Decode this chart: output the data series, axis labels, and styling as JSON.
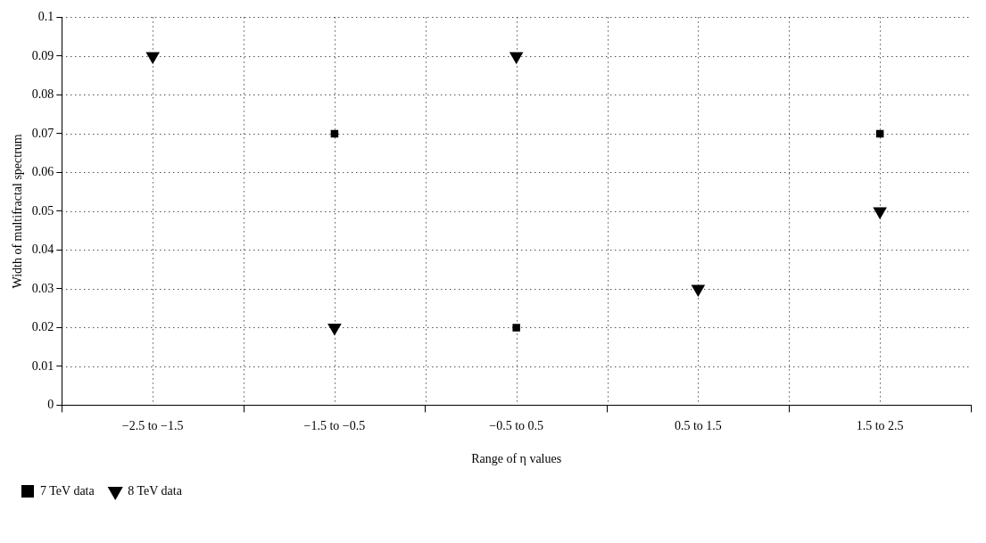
{
  "chart_data": {
    "type": "scatter",
    "xlabel": "Range of η values",
    "ylabel": "Width of multifractal spectrum",
    "categories": [
      "−2.5 to −1.5",
      "−1.5 to −0.5",
      "−0.5 to 0.5",
      "0.5 to 1.5",
      "1.5 to 2.5"
    ],
    "series": [
      {
        "name": "7 TeV data",
        "color": "#000000",
        "marker": "square",
        "values": [
          null,
          0.07,
          0.02,
          null,
          0.07
        ]
      },
      {
        "name": "8 TeV data",
        "color": "#000000",
        "marker": "triangle",
        "values": [
          0.09,
          0.02,
          0.09,
          0.03,
          0.05
        ]
      }
    ],
    "ylim": [
      0,
      0.1
    ],
    "yticks": [
      0,
      0.01,
      0.02,
      0.03,
      0.04,
      0.05,
      0.06,
      0.07,
      0.08,
      0.09,
      0.1
    ],
    "grid": true,
    "legend": "bottom left"
  }
}
